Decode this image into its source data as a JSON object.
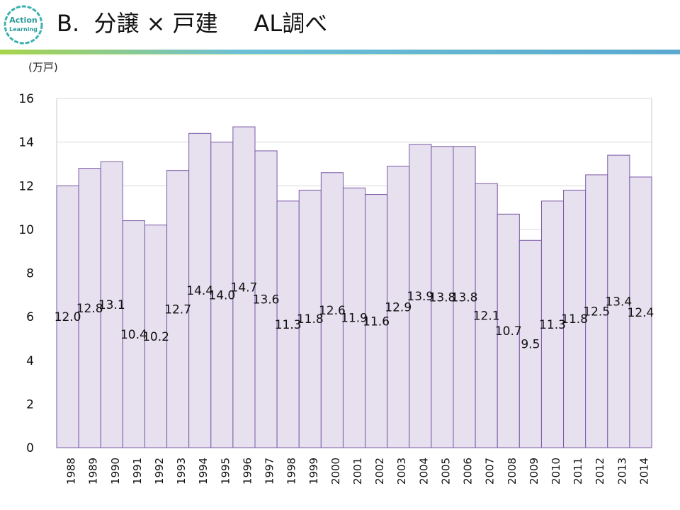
{
  "header": {
    "title": "B.  分譲 × 戸建     AL調べ",
    "logo_line1": "Action",
    "logo_line2": "Learning"
  },
  "colors": {
    "bar_fill": "#e6e0ef",
    "bar_stroke": "#7b5aa6",
    "accent_green": "#a8d44a",
    "accent_blue": "#5aa8d0"
  },
  "chart_data": {
    "type": "bar",
    "title": "",
    "ylabel": "(万戸)",
    "xlabel": "",
    "ylim": [
      0,
      16
    ],
    "yticks": [
      0,
      2,
      4,
      6,
      8,
      10,
      12,
      14,
      16
    ],
    "grid": true,
    "categories": [
      "1988",
      "1989",
      "1990",
      "1991",
      "1992",
      "1993",
      "1994",
      "1995",
      "1996",
      "1997",
      "1998",
      "1999",
      "2000",
      "2001",
      "2002",
      "2003",
      "2004",
      "2005",
      "2006",
      "2007",
      "2008",
      "2009",
      "2010",
      "2011",
      "2012",
      "2013",
      "2014"
    ],
    "values": [
      12.0,
      12.8,
      13.1,
      10.4,
      10.2,
      12.7,
      14.4,
      14.0,
      14.7,
      13.6,
      11.3,
      11.8,
      12.6,
      11.9,
      11.6,
      12.9,
      13.9,
      13.8,
      13.8,
      12.1,
      10.7,
      9.5,
      11.3,
      11.8,
      12.5,
      13.4,
      12.4
    ],
    "labels": [
      "12.0",
      "12.8",
      "13.1",
      "10.4",
      "10.2",
      "12.7",
      "14.4",
      "14.0",
      "14.7",
      "13.6",
      "11.3",
      "11.8",
      "12.6",
      "11.9",
      "11.6",
      "12.9",
      "13.9",
      "13.8",
      "13.8",
      "12.1",
      "10.7",
      "9.5",
      "11.3",
      "11.8",
      "12.5",
      "13.4",
      "12.4"
    ]
  }
}
